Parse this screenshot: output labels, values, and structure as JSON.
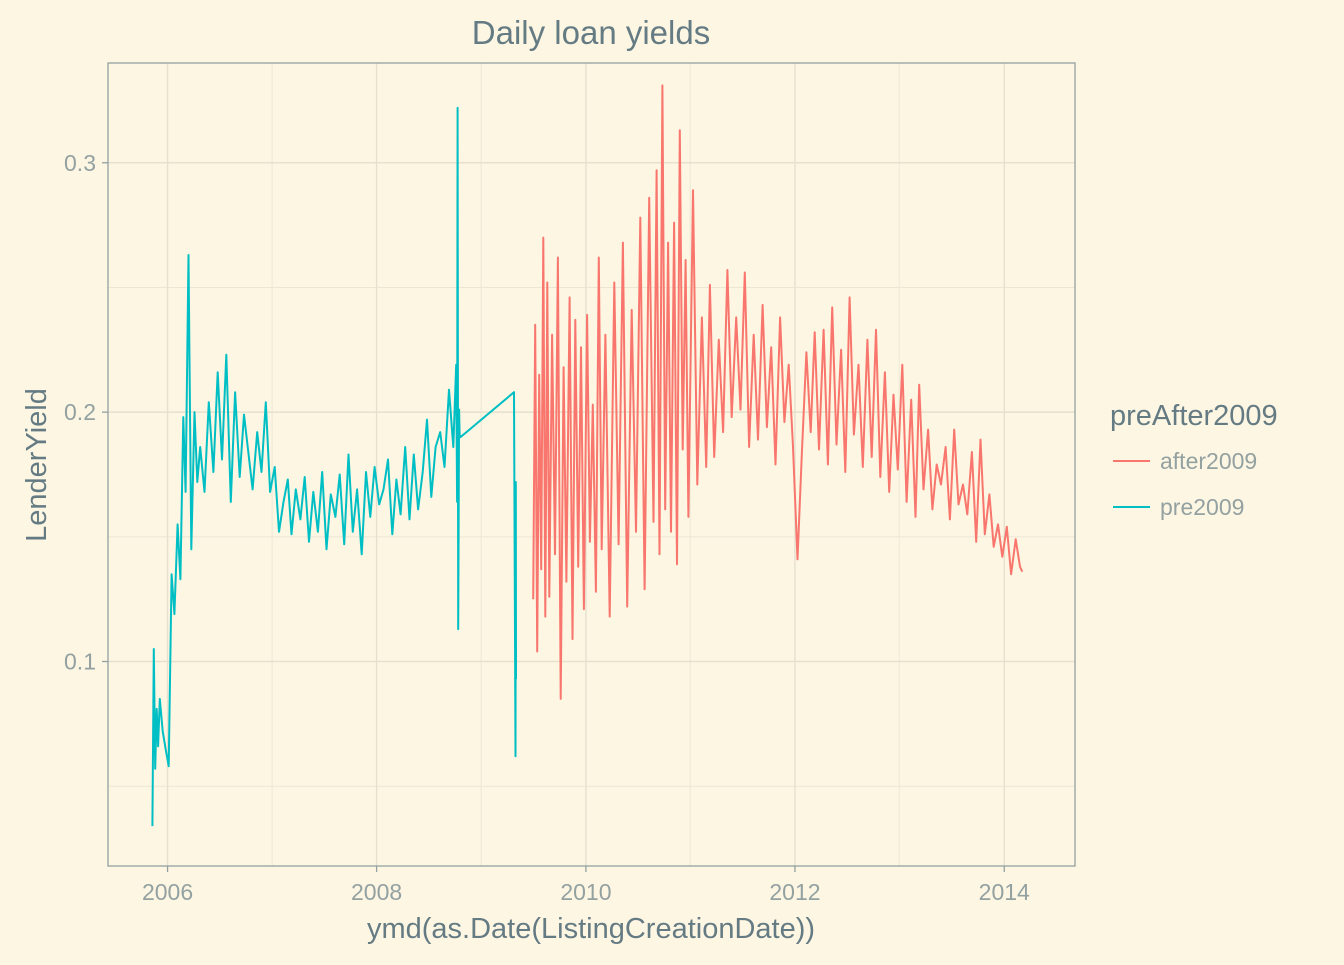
{
  "chart_data": {
    "type": "line",
    "title": "Daily loan yields",
    "xlabel": "ymd(as.Date(ListingCreationDate))",
    "ylabel": "LenderYield",
    "xlim": [
      "2005-06-07",
      "2014-09-05"
    ],
    "ylim": [
      0.018,
      0.34
    ],
    "x_ticks": [
      "2006",
      "2008",
      "2010",
      "2012",
      "2014"
    ],
    "x_tick_dates": [
      "2006-01-01",
      "2008-01-01",
      "2010-01-01",
      "2012-01-01",
      "2014-01-01"
    ],
    "y_ticks": [
      "0.1",
      "0.2",
      "0.3"
    ],
    "y_tick_values": [
      0.1,
      0.2,
      0.3
    ],
    "grid": true,
    "legend": {
      "title": "preAfter2009",
      "position": "right"
    },
    "series": [
      {
        "name": "pre2009",
        "color": "#00bfc4",
        "x": [
          "2005-11-09",
          "2005-11-14",
          "2005-11-19",
          "2005-11-24",
          "2005-11-29",
          "2005-12-05",
          "2005-12-15",
          "2005-12-25",
          "2006-01-05",
          "2006-01-15",
          "2006-01-25",
          "2006-02-05",
          "2006-02-15",
          "2006-02-25",
          "2006-03-05",
          "2006-03-15",
          "2006-03-25",
          "2006-04-05",
          "2006-04-15",
          "2006-04-25",
          "2006-05-10",
          "2006-05-25",
          "2006-06-10",
          "2006-06-25",
          "2006-07-10",
          "2006-07-25",
          "2006-08-10",
          "2006-08-25",
          "2006-09-10",
          "2006-09-25",
          "2006-10-10",
          "2006-10-25",
          "2006-11-10",
          "2006-11-25",
          "2006-12-10",
          "2006-12-25",
          "2007-01-10",
          "2007-01-25",
          "2007-02-10",
          "2007-02-25",
          "2007-03-10",
          "2007-03-25",
          "2007-04-10",
          "2007-04-25",
          "2007-05-10",
          "2007-05-25",
          "2007-06-10",
          "2007-06-25",
          "2007-07-10",
          "2007-07-25",
          "2007-08-10",
          "2007-08-25",
          "2007-09-10",
          "2007-09-25",
          "2007-10-10",
          "2007-10-25",
          "2007-11-10",
          "2007-11-25",
          "2007-12-10",
          "2007-12-25",
          "2008-01-10",
          "2008-01-25",
          "2008-02-10",
          "2008-02-25",
          "2008-03-10",
          "2008-03-25",
          "2008-04-10",
          "2008-04-25",
          "2008-05-10",
          "2008-05-25",
          "2008-06-10",
          "2008-06-25",
          "2008-07-10",
          "2008-07-25",
          "2008-08-10",
          "2008-08-25",
          "2008-09-10",
          "2008-09-25",
          "2008-10-05",
          "2008-10-08",
          "2008-10-10",
          "2008-10-12",
          "2008-10-15",
          "2008-10-17",
          "2008-10-20",
          "2009-04-25",
          "2009-04-30",
          "2009-05-01",
          "2009-05-02"
        ],
        "y": [
          0.034,
          0.105,
          0.057,
          0.081,
          0.066,
          0.085,
          0.072,
          0.065,
          0.058,
          0.135,
          0.119,
          0.155,
          0.133,
          0.198,
          0.168,
          0.263,
          0.145,
          0.2,
          0.172,
          0.186,
          0.168,
          0.204,
          0.176,
          0.216,
          0.181,
          0.223,
          0.164,
          0.208,
          0.174,
          0.199,
          0.184,
          0.169,
          0.192,
          0.176,
          0.204,
          0.168,
          0.178,
          0.152,
          0.164,
          0.173,
          0.151,
          0.169,
          0.157,
          0.174,
          0.148,
          0.168,
          0.152,
          0.176,
          0.145,
          0.167,
          0.158,
          0.175,
          0.147,
          0.183,
          0.152,
          0.169,
          0.143,
          0.176,
          0.158,
          0.178,
          0.163,
          0.169,
          0.181,
          0.151,
          0.173,
          0.159,
          0.186,
          0.157,
          0.183,
          0.161,
          0.176,
          0.197,
          0.166,
          0.186,
          0.192,
          0.178,
          0.209,
          0.186,
          0.219,
          0.164,
          0.322,
          0.113,
          0.201,
          0.191,
          0.19,
          0.208,
          0.062,
          0.172,
          0.093
        ]
      },
      {
        "name": "after2009",
        "color": "#f8766d",
        "x": [
          "2009-07-01",
          "2009-07-08",
          "2009-07-15",
          "2009-07-22",
          "2009-07-29",
          "2009-08-05",
          "2009-08-12",
          "2009-08-19",
          "2009-08-26",
          "2009-09-05",
          "2009-09-15",
          "2009-09-25",
          "2009-10-05",
          "2009-10-15",
          "2009-10-25",
          "2009-11-05",
          "2009-11-15",
          "2009-11-25",
          "2009-12-05",
          "2009-12-15",
          "2009-12-25",
          "2010-01-05",
          "2010-01-15",
          "2010-01-25",
          "2010-02-05",
          "2010-02-15",
          "2010-02-25",
          "2010-03-10",
          "2010-03-25",
          "2010-04-10",
          "2010-04-25",
          "2010-05-10",
          "2010-05-25",
          "2010-06-10",
          "2010-06-25",
          "2010-07-10",
          "2010-07-25",
          "2010-08-10",
          "2010-08-25",
          "2010-09-05",
          "2010-09-15",
          "2010-09-25",
          "2010-10-05",
          "2010-10-15",
          "2010-10-25",
          "2010-11-05",
          "2010-11-15",
          "2010-11-25",
          "2010-12-05",
          "2010-12-15",
          "2010-12-25",
          "2011-01-10",
          "2011-01-25",
          "2011-02-10",
          "2011-02-25",
          "2011-03-10",
          "2011-03-25",
          "2011-04-10",
          "2011-04-25",
          "2011-05-10",
          "2011-05-25",
          "2011-06-10",
          "2011-06-25",
          "2011-07-10",
          "2011-07-25",
          "2011-08-10",
          "2011-08-25",
          "2011-09-10",
          "2011-09-25",
          "2011-10-10",
          "2011-10-25",
          "2011-11-10",
          "2011-11-25",
          "2011-12-10",
          "2011-12-25",
          "2012-01-10",
          "2012-01-25",
          "2012-02-10",
          "2012-02-25",
          "2012-03-10",
          "2012-03-25",
          "2012-04-10",
          "2012-04-25",
          "2012-05-10",
          "2012-05-25",
          "2012-06-10",
          "2012-06-25",
          "2012-07-10",
          "2012-07-25",
          "2012-08-10",
          "2012-08-25",
          "2012-09-10",
          "2012-09-25",
          "2012-10-10",
          "2012-10-25",
          "2012-11-10",
          "2012-11-25",
          "2012-12-10",
          "2012-12-25",
          "2013-01-10",
          "2013-01-25",
          "2013-02-10",
          "2013-02-25",
          "2013-03-10",
          "2013-03-25",
          "2013-04-10",
          "2013-04-25",
          "2013-05-10",
          "2013-05-25",
          "2013-06-10",
          "2013-06-25",
          "2013-07-10",
          "2013-07-25",
          "2013-08-10",
          "2013-08-25",
          "2013-09-10",
          "2013-09-25",
          "2013-10-10",
          "2013-10-25",
          "2013-11-10",
          "2013-11-25",
          "2013-12-10",
          "2013-12-25",
          "2014-01-10",
          "2014-01-25",
          "2014-02-10",
          "2014-02-25",
          "2014-03-05"
        ],
        "y": [
          0.125,
          0.235,
          0.104,
          0.215,
          0.137,
          0.27,
          0.118,
          0.252,
          0.126,
          0.231,
          0.143,
          0.262,
          0.085,
          0.218,
          0.132,
          0.246,
          0.109,
          0.237,
          0.138,
          0.226,
          0.121,
          0.239,
          0.148,
          0.203,
          0.128,
          0.262,
          0.145,
          0.231,
          0.118,
          0.252,
          0.147,
          0.268,
          0.122,
          0.241,
          0.152,
          0.278,
          0.129,
          0.286,
          0.156,
          0.297,
          0.143,
          0.331,
          0.161,
          0.268,
          0.152,
          0.276,
          0.139,
          0.313,
          0.185,
          0.261,
          0.158,
          0.289,
          0.171,
          0.238,
          0.178,
          0.251,
          0.182,
          0.229,
          0.192,
          0.257,
          0.198,
          0.238,
          0.201,
          0.256,
          0.186,
          0.231,
          0.189,
          0.243,
          0.194,
          0.226,
          0.179,
          0.238,
          0.196,
          0.219,
          0.187,
          0.141,
          0.183,
          0.224,
          0.192,
          0.232,
          0.185,
          0.233,
          0.179,
          0.242,
          0.187,
          0.225,
          0.176,
          0.246,
          0.191,
          0.219,
          0.178,
          0.229,
          0.182,
          0.233,
          0.174,
          0.216,
          0.168,
          0.207,
          0.177,
          0.219,
          0.164,
          0.205,
          0.158,
          0.211,
          0.169,
          0.193,
          0.161,
          0.179,
          0.171,
          0.186,
          0.157,
          0.193,
          0.163,
          0.171,
          0.159,
          0.184,
          0.148,
          0.189,
          0.151,
          0.167,
          0.146,
          0.155,
          0.142,
          0.154,
          0.135,
          0.149,
          0.138,
          0.136
        ]
      }
    ]
  }
}
